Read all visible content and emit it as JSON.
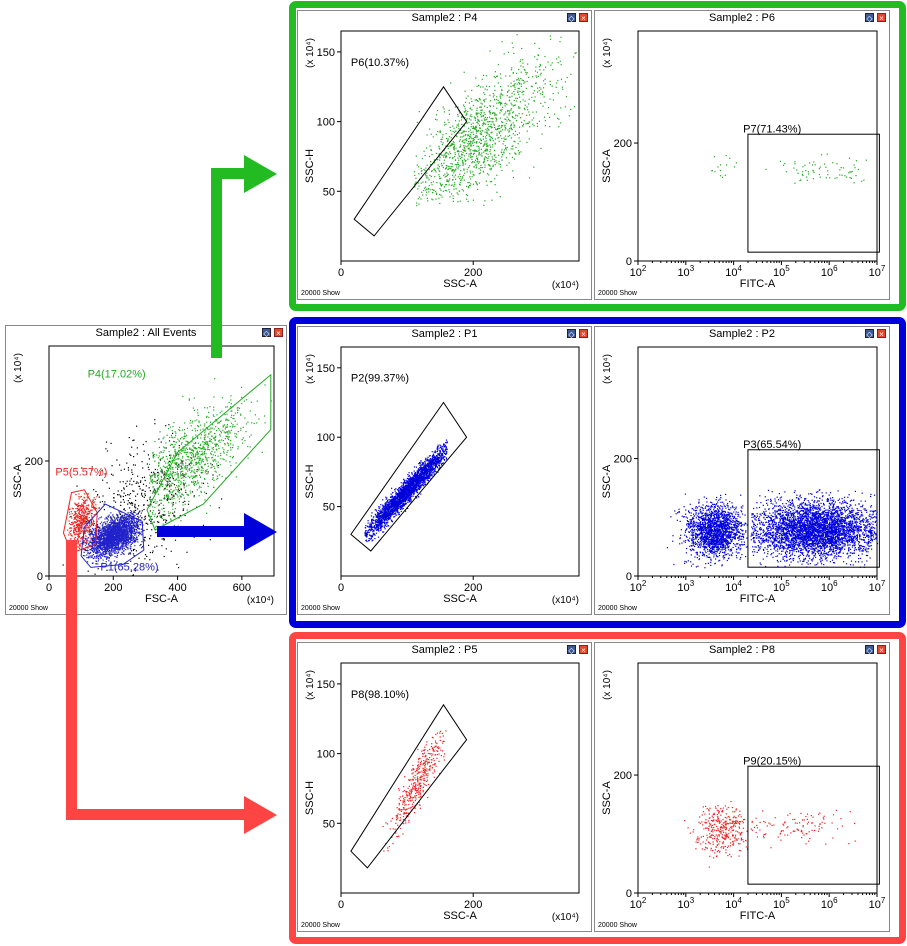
{
  "frames": {
    "top": "#22bb22",
    "middle": "#0000dd",
    "bottom": "#ff4444"
  },
  "panels": [
    {
      "id": "all",
      "title": "Sample2 : All Events",
      "footer": "20000  Show",
      "xlabel": "FSC-A",
      "ylabel": "SSC-A",
      "xscale": "lin",
      "xmax": 700,
      "ymax": 400,
      "xticks": [
        0,
        200,
        400,
        600
      ],
      "yticks": [
        0,
        200
      ],
      "show_xexp": true,
      "yexp": "(x 10⁴)",
      "xexp": "(x10⁴)",
      "gates": [
        {
          "label": "P4(17.02%)",
          "color": "#22aa22",
          "label_at": [
            120,
            345
          ],
          "shape": "polygon",
          "points": [
            [
              305,
              115
            ],
            [
              400,
              215
            ],
            [
              690,
              350
            ],
            [
              690,
              255
            ],
            [
              480,
              125
            ],
            [
              330,
              80
            ]
          ]
        },
        {
          "label": "P5(5.57%)",
          "color": "#ee2222",
          "label_at": [
            20,
            175
          ],
          "shape": "polygon",
          "points": [
            [
              45,
              75
            ],
            [
              70,
              145
            ],
            [
              110,
              150
            ],
            [
              150,
              110
            ],
            [
              145,
              55
            ],
            [
              70,
              40
            ]
          ]
        },
        {
          "label": "P1(65.28%)",
          "color": "#2222cc",
          "label_at": [
            160,
            10
          ],
          "shape": "polygon",
          "points": [
            [
              100,
              35
            ],
            [
              110,
              85
            ],
            [
              175,
              125
            ],
            [
              290,
              95
            ],
            [
              295,
              45
            ],
            [
              230,
              20
            ],
            [
              130,
              15
            ]
          ]
        }
      ],
      "clouds": [
        {
          "type": "lin",
          "color": "#000",
          "n": 500,
          "cx": 280,
          "cy": 120,
          "sx": 90,
          "sy": 60,
          "rho": 0.3,
          "xr": [
            20,
            620
          ],
          "yr": [
            0,
            340
          ]
        },
        {
          "type": "lin",
          "color": "#22aa22",
          "n": 1000,
          "cx": 430,
          "cy": 200,
          "sx": 90,
          "sy": 50,
          "rho": 0.7,
          "xr": [
            310,
            690
          ],
          "yr": [
            85,
            345
          ]
        },
        {
          "type": "lin",
          "color": "#ee2222",
          "n": 500,
          "cx": 100,
          "cy": 95,
          "sx": 22,
          "sy": 22,
          "rho": 0.3,
          "xr": [
            55,
            150
          ],
          "yr": [
            45,
            145
          ]
        },
        {
          "type": "lin",
          "color": "#2222cc",
          "n": 2200,
          "cx": 200,
          "cy": 70,
          "sx": 40,
          "sy": 18,
          "rho": 0.5,
          "xr": [
            105,
            290
          ],
          "yr": [
            20,
            115
          ]
        }
      ]
    },
    {
      "id": "p4",
      "title": "Sample2 : P4",
      "footer": "20000  Show",
      "xlabel": "SSC-A",
      "ylabel": "SSC-H",
      "xscale": "lin",
      "xmax": 360,
      "ymax": 165,
      "xticks": [
        0,
        200
      ],
      "yticks": [
        50,
        100,
        150
      ],
      "show_xexp": true,
      "yexp": "(x 10⁴)",
      "xexp": "(x10⁴)",
      "gates": [
        {
          "label": "P6(10.37%)",
          "color": "#000",
          "label_at": [
            15,
            140
          ],
          "shape": "polygon",
          "points": [
            [
              20,
              30
            ],
            [
              50,
              18
            ],
            [
              190,
              100
            ],
            [
              155,
              125
            ]
          ]
        }
      ],
      "clouds": [
        {
          "type": "lin",
          "color": "#22aa22",
          "n": 1300,
          "cx": 205,
          "cy": 88,
          "sx": 60,
          "sy": 28,
          "rho": 0.75,
          "xr": [
            110,
            355
          ],
          "yr": [
            40,
            165
          ]
        }
      ]
    },
    {
      "id": "p6",
      "title": "Sample2 : P6",
      "footer": "20000  Show",
      "xlabel": "FITC-A",
      "ylabel": "SSC-A",
      "xscale": "log",
      "xmax": 7,
      "ymax": 390,
      "xticks": [
        2,
        3,
        4,
        5,
        6,
        7
      ],
      "yticks": [
        0,
        200
      ],
      "show_xexp": false,
      "yexp": "(x 10⁴)",
      "xexp": "",
      "gates": [
        {
          "label": "P7(71.43%)",
          "color": "#000",
          "label_at": [
            4.2,
            218
          ],
          "shape": "rect",
          "points": [
            [
              4.3,
              15
            ],
            [
              7.05,
              215
            ]
          ]
        }
      ],
      "clouds": [
        {
          "type": "log",
          "color": "#22aa22",
          "n": 15,
          "cx": 3.8,
          "cy": 162,
          "sx": 0.18,
          "sy": 15,
          "rho": 0,
          "xr": [
            3.5,
            4.2
          ],
          "yr": [
            130,
            190
          ]
        },
        {
          "type": "log",
          "color": "#22aa22",
          "n": 70,
          "cx": 5.9,
          "cy": 155,
          "sx": 0.5,
          "sy": 12,
          "rho": 0,
          "xr": [
            4.5,
            6.95
          ],
          "yr": [
            125,
            185
          ]
        }
      ]
    },
    {
      "id": "p1",
      "title": "Sample2 : P1",
      "footer": "20000  Show",
      "xlabel": "SSC-A",
      "ylabel": "SSC-H",
      "xscale": "lin",
      "xmax": 360,
      "ymax": 165,
      "xticks": [
        0,
        200
      ],
      "yticks": [
        50,
        100,
        150
      ],
      "show_xexp": true,
      "yexp": "(x 10⁴)",
      "xexp": "(x10⁴)",
      "gates": [
        {
          "label": "P2(99.37%)",
          "color": "#000",
          "label_at": [
            15,
            140
          ],
          "shape": "polygon",
          "points": [
            [
              15,
              30
            ],
            [
              45,
              18
            ],
            [
              190,
              100
            ],
            [
              155,
              125
            ]
          ]
        }
      ],
      "clouds": [
        {
          "type": "lin",
          "color": "#0000dd",
          "n": 2600,
          "cx": 100,
          "cy": 62,
          "sx": 33,
          "sy": 17,
          "rho": 0.97,
          "xr": [
            35,
            160
          ],
          "yr": [
            25,
            105
          ]
        }
      ]
    },
    {
      "id": "p2",
      "title": "Sample2 : P2",
      "footer": "20000  Show",
      "xlabel": "FITC-A",
      "ylabel": "SSC-A",
      "xscale": "log",
      "xmax": 7,
      "ymax": 390,
      "xticks": [
        2,
        3,
        4,
        5,
        6,
        7
      ],
      "yticks": [
        0,
        200
      ],
      "show_xexp": false,
      "yexp": "(x 10⁴)",
      "xexp": "",
      "gates": [
        {
          "label": "P3(65.54%)",
          "color": "#000",
          "label_at": [
            4.2,
            218
          ],
          "shape": "rect",
          "points": [
            [
              4.3,
              15
            ],
            [
              7.05,
              215
            ]
          ]
        }
      ],
      "clouds": [
        {
          "type": "log",
          "color": "#0000dd",
          "n": 1800,
          "cx": 3.6,
          "cy": 78,
          "sx": 0.3,
          "sy": 22,
          "rho": 0,
          "xr": [
            2.0,
            4.3
          ],
          "yr": [
            15,
            150
          ]
        },
        {
          "type": "log",
          "color": "#0000dd",
          "n": 3800,
          "cx": 5.7,
          "cy": 80,
          "sx": 0.65,
          "sy": 24,
          "rho": 0,
          "xr": [
            4.35,
            7.0
          ],
          "yr": [
            15,
            150
          ]
        }
      ]
    },
    {
      "id": "p5",
      "title": "Sample2 : P5",
      "footer": "20000  Show",
      "xlabel": "SSC-A",
      "ylabel": "SSC-H",
      "xscale": "lin",
      "xmax": 360,
      "ymax": 165,
      "xticks": [
        0,
        200
      ],
      "yticks": [
        50,
        100,
        150
      ],
      "show_xexp": true,
      "yexp": "(x 10⁴)",
      "xexp": "(x10⁴)",
      "gates": [
        {
          "label": "P8(98.10%)",
          "color": "#000",
          "label_at": [
            15,
            140
          ],
          "shape": "polygon",
          "points": [
            [
              15,
              30
            ],
            [
              40,
              18
            ],
            [
              190,
              110
            ],
            [
              155,
              135
            ]
          ]
        }
      ],
      "clouds": [
        {
          "type": "lin",
          "color": "#ee2222",
          "n": 420,
          "cx": 115,
          "cy": 80,
          "sx": 22,
          "sy": 20,
          "rho": 0.9,
          "xr": [
            60,
            160
          ],
          "yr": [
            30,
            125
          ]
        }
      ]
    },
    {
      "id": "p8",
      "title": "Sample2 : P8",
      "footer": "20000  Show",
      "xlabel": "FITC-A",
      "ylabel": "SSC-A",
      "xscale": "log",
      "xmax": 7,
      "ymax": 390,
      "xticks": [
        2,
        3,
        4,
        5,
        6,
        7
      ],
      "yticks": [
        0,
        200
      ],
      "show_xexp": false,
      "yexp": "(x 10⁴)",
      "xexp": "",
      "gates": [
        {
          "label": "P9(20.15%)",
          "color": "#000",
          "label_at": [
            4.2,
            218
          ],
          "shape": "rect",
          "points": [
            [
              4.3,
              15
            ],
            [
              7.05,
              215
            ]
          ]
        }
      ],
      "clouds": [
        {
          "type": "log",
          "color": "#ee2222",
          "n": 350,
          "cx": 3.75,
          "cy": 108,
          "sx": 0.28,
          "sy": 22,
          "rho": 0,
          "xr": [
            2.6,
            4.3
          ],
          "yr": [
            40,
            160
          ]
        },
        {
          "type": "log",
          "color": "#ee2222",
          "n": 110,
          "cx": 5.2,
          "cy": 112,
          "sx": 0.7,
          "sy": 16,
          "rho": 0,
          "xr": [
            4.35,
            6.7
          ],
          "yr": [
            70,
            150
          ]
        }
      ]
    }
  ]
}
